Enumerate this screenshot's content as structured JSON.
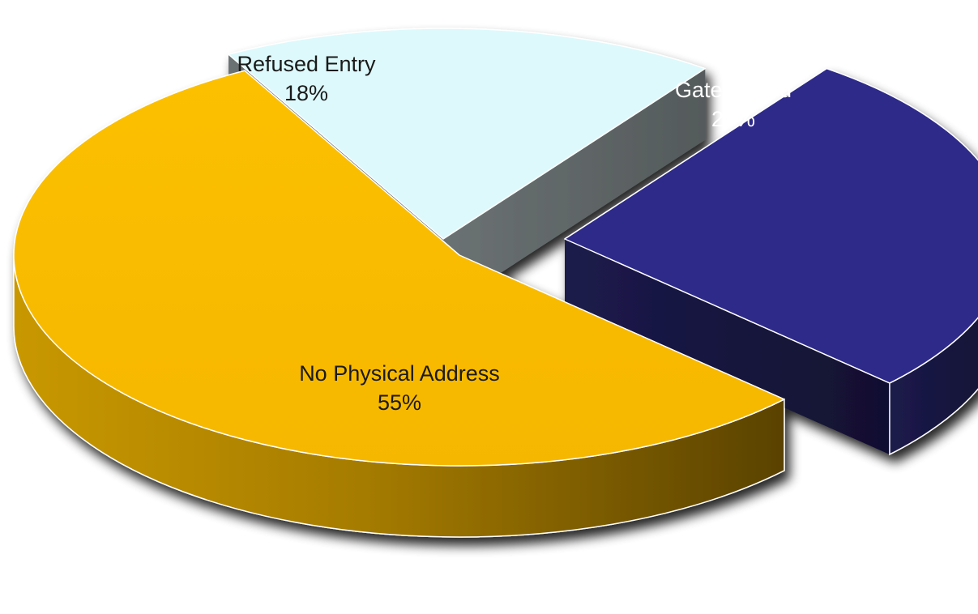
{
  "chart_data": {
    "type": "pie",
    "style": "3d-exploded",
    "title": "",
    "legend": "none",
    "slices": [
      {
        "label": "Gate locked",
        "percent_label": "27%",
        "value": 27,
        "color": "#2d2b8a",
        "side_color": "#18173d",
        "label_color": "#ffffff"
      },
      {
        "label": "No Physical Address",
        "percent_label": "55%",
        "value": 55,
        "color": "#f9bb00",
        "side_color": "#b08200",
        "label_color": "#1a1a1a"
      },
      {
        "label": "Refused Entry",
        "percent_label": "18%",
        "value": 18,
        "color": "#ddf9fb",
        "side_color": "#5e6465",
        "label_color": "#1a1a1a"
      }
    ]
  }
}
